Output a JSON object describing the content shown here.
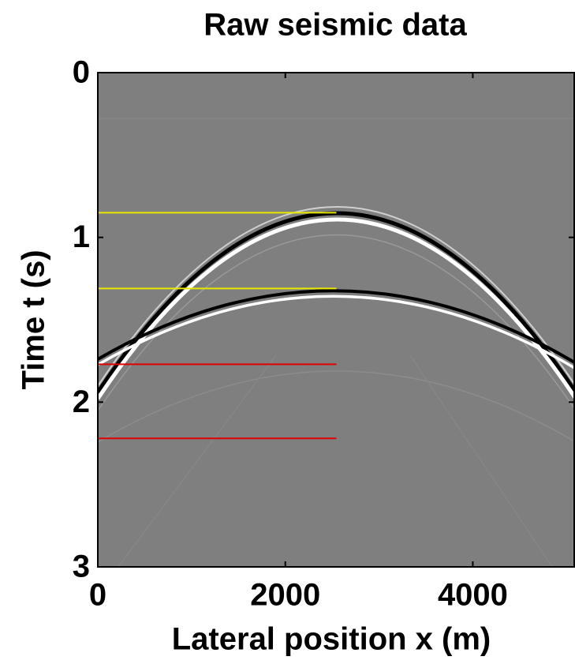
{
  "chart_data": {
    "type": "line",
    "title": "Raw seismic data",
    "x_label": "Lateral position x (m)",
    "y_label": "Time t (s)",
    "xlim": [
      0,
      5090
    ],
    "ylim": [
      0,
      3
    ],
    "y_reversed": true,
    "xticks": [
      0,
      2000,
      4000
    ],
    "yticks": [
      0,
      1,
      2,
      3
    ],
    "background": "#7f7f7f",
    "series": [
      {
        "color": "#e8e800",
        "x": [
          0,
          2545
        ],
        "values": [
          0.85,
          0.85
        ]
      },
      {
        "color": "#e8e800",
        "x": [
          0,
          2545
        ],
        "values": [
          1.31,
          1.31
        ]
      },
      {
        "color": "#e00000",
        "x": [
          0,
          2545
        ],
        "values": [
          1.77,
          1.77
        ]
      },
      {
        "color": "#e00000",
        "x": [
          0,
          2545
        ],
        "values": [
          2.22,
          2.22
        ]
      }
    ]
  }
}
